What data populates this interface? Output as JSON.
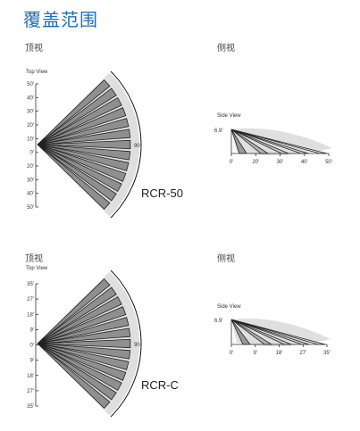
{
  "page": {
    "title": "覆盖范围",
    "colors": {
      "title": "#1f6fb5",
      "beam_fill": "#8f8f8f",
      "beam_stroke": "#222222",
      "halo": "#d9d9d9",
      "accent": "#1f6fb5"
    }
  },
  "panels": [
    {
      "top_view_label": "顶视",
      "side_view_label": "侧视",
      "top_view_caption": "Top View",
      "side_view_caption": "Side View",
      "model": "RCR-50",
      "arc_label": "90",
      "top_ticks": [
        "50'",
        "40'",
        "30'",
        "20'",
        "10'",
        "0'",
        "20'",
        "30'",
        "40'",
        "50'"
      ],
      "side_height": "6.9'",
      "side_ticks": [
        "0'",
        "20'",
        "30'",
        "40'",
        "50'"
      ]
    },
    {
      "top_view_label": "顶视",
      "side_view_label": "侧视",
      "top_view_caption": "Top View",
      "side_view_caption": "Side View",
      "model": "RCR-C",
      "arc_label": "90",
      "top_ticks": [
        "35'",
        "27'",
        "18'",
        "9'",
        "0'",
        "9'",
        "18'",
        "27'",
        "35'"
      ],
      "side_height": "6.9'",
      "side_ticks": [
        "0'",
        "9'",
        "18'",
        "27'",
        "35'"
      ]
    }
  ]
}
